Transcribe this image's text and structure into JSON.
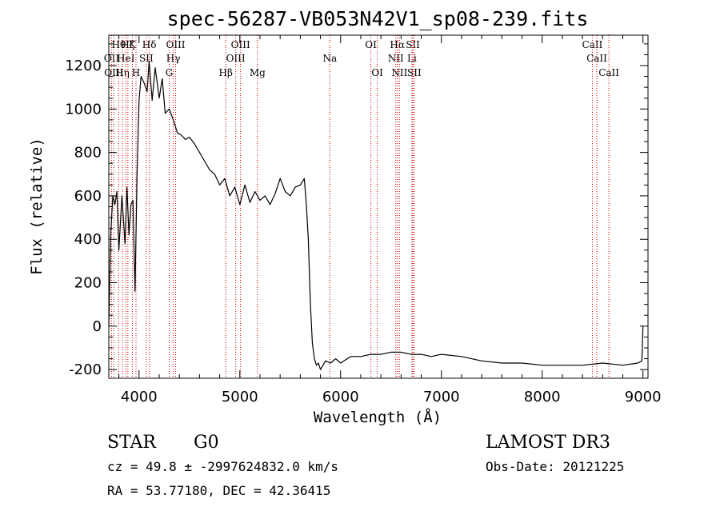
{
  "chart_data": {
    "type": "line",
    "title": "spec-56287-VB053N42V1_sp08-239.fits",
    "xlabel": "Wavelength (Å)",
    "ylabel": "Flux (relative)",
    "xlim": [
      3700,
      9050
    ],
    "ylim": [
      -240,
      1340
    ],
    "x_ticks": [
      4000,
      5000,
      6000,
      7000,
      8000,
      9000
    ],
    "x_tick_labels": [
      "4000",
      "5000",
      "6000",
      "7000",
      "8000",
      "9000"
    ],
    "y_ticks": [
      -200,
      0,
      200,
      400,
      600,
      800,
      1000,
      1200
    ],
    "y_tick_labels": [
      "-200",
      "0",
      "200",
      "400",
      "600",
      "800",
      "1000",
      "1200"
    ],
    "grid": false,
    "line_color": "#000000",
    "marker_color": "#cc0000",
    "series": [
      {
        "x": [
          3700,
          3720,
          3740,
          3760,
          3780,
          3800,
          3830,
          3860,
          3880,
          3900,
          3920,
          3940,
          3960,
          3980,
          4000,
          4020,
          4050,
          4080,
          4100,
          4130,
          4160,
          4200,
          4230,
          4260,
          4300,
          4340,
          4380,
          4420,
          4460,
          4500,
          4550,
          4600,
          4650,
          4700,
          4750,
          4800,
          4850,
          4900,
          4950,
          5000,
          5050,
          5100,
          5150,
          5200,
          5250,
          5300,
          5350,
          5400,
          5450,
          5500,
          5550,
          5600,
          5640,
          5660,
          5680,
          5700,
          5720,
          5740,
          5760,
          5780,
          5800,
          5850,
          5900,
          5950,
          6000,
          6100,
          6200,
          6300,
          6400,
          6500,
          6600,
          6700,
          6800,
          6900,
          7000,
          7200,
          7400,
          7600,
          7800,
          8000,
          8200,
          8400,
          8600,
          8800,
          8950,
          8990,
          9000
        ],
        "values": [
          0,
          430,
          600,
          560,
          620,
          350,
          600,
          380,
          640,
          420,
          560,
          580,
          160,
          700,
          1040,
          1150,
          1120,
          1080,
          1220,
          1040,
          1190,
          1050,
          1140,
          980,
          1000,
          950,
          890,
          880,
          860,
          870,
          840,
          800,
          760,
          720,
          700,
          650,
          680,
          600,
          640,
          560,
          650,
          570,
          620,
          580,
          600,
          560,
          610,
          680,
          620,
          600,
          640,
          650,
          680,
          560,
          400,
          100,
          -80,
          -150,
          -180,
          -170,
          -200,
          -160,
          -170,
          -150,
          -170,
          -140,
          -140,
          -130,
          -130,
          -120,
          -120,
          -130,
          -130,
          -140,
          -130,
          -140,
          -160,
          -170,
          -170,
          -180,
          -180,
          -180,
          -170,
          -180,
          -170,
          -160,
          0
        ]
      }
    ],
    "line_markers": [
      {
        "wavelength": 3727,
        "label": "OII",
        "row": 1
      },
      {
        "wavelength": 3750,
        "label": "OIII",
        "row": 2
      },
      {
        "wavelength": 3798,
        "label": "Hθ",
        "row": 0
      },
      {
        "wavelength": 3835,
        "label": "Hη",
        "row": 2
      },
      {
        "wavelength": 3869,
        "label": "HeI",
        "row": 1
      },
      {
        "wavelength": 3889,
        "label": "Hζ",
        "row": 0
      },
      {
        "wavelength": 3934,
        "label": "K",
        "row": 0
      },
      {
        "wavelength": 3970,
        "label": "H",
        "row": 2
      },
      {
        "wavelength": 4072,
        "label": "SII",
        "row": 1
      },
      {
        "wavelength": 4102,
        "label": "Hδ",
        "row": 0
      },
      {
        "wavelength": 4300,
        "label": "G",
        "row": 2
      },
      {
        "wavelength": 4340,
        "label": "Hγ",
        "row": 1
      },
      {
        "wavelength": 4363,
        "label": "OIII",
        "row": 0
      },
      {
        "wavelength": 4861,
        "label": "Hβ",
        "row": 2
      },
      {
        "wavelength": 4959,
        "label": "OIII",
        "row": 1
      },
      {
        "wavelength": 5007,
        "label": "OIII",
        "row": 0
      },
      {
        "wavelength": 5175,
        "label": "Mg",
        "row": 2
      },
      {
        "wavelength": 5893,
        "label": "Na",
        "row": 1
      },
      {
        "wavelength": 6300,
        "label": "OI",
        "row": 0
      },
      {
        "wavelength": 6364,
        "label": "OI",
        "row": 2
      },
      {
        "wavelength": 6548,
        "label": "NII",
        "row": 1
      },
      {
        "wavelength": 6563,
        "label": "Hα",
        "row": 0
      },
      {
        "wavelength": 6584,
        "label": "NII",
        "row": 2
      },
      {
        "wavelength": 6708,
        "label": "Li",
        "row": 1
      },
      {
        "wavelength": 6717,
        "label": "SII",
        "row": 0
      },
      {
        "wavelength": 6731,
        "label": "SII",
        "row": 2
      },
      {
        "wavelength": 8498,
        "label": "CaII",
        "row": 0
      },
      {
        "wavelength": 8542,
        "label": "CaII",
        "row": 1
      },
      {
        "wavelength": 8662,
        "label": "CaII",
        "row": 2
      }
    ]
  },
  "footer": {
    "object_class": "STAR",
    "subclass": "G0",
    "survey": "LAMOST DR3",
    "redshift_line": "cz = 49.8 ± -2997624832.0 km/s",
    "obs_date": "Obs-Date: 20121225",
    "coords_line": "RA =  53.77180, DEC =  42.36415"
  }
}
